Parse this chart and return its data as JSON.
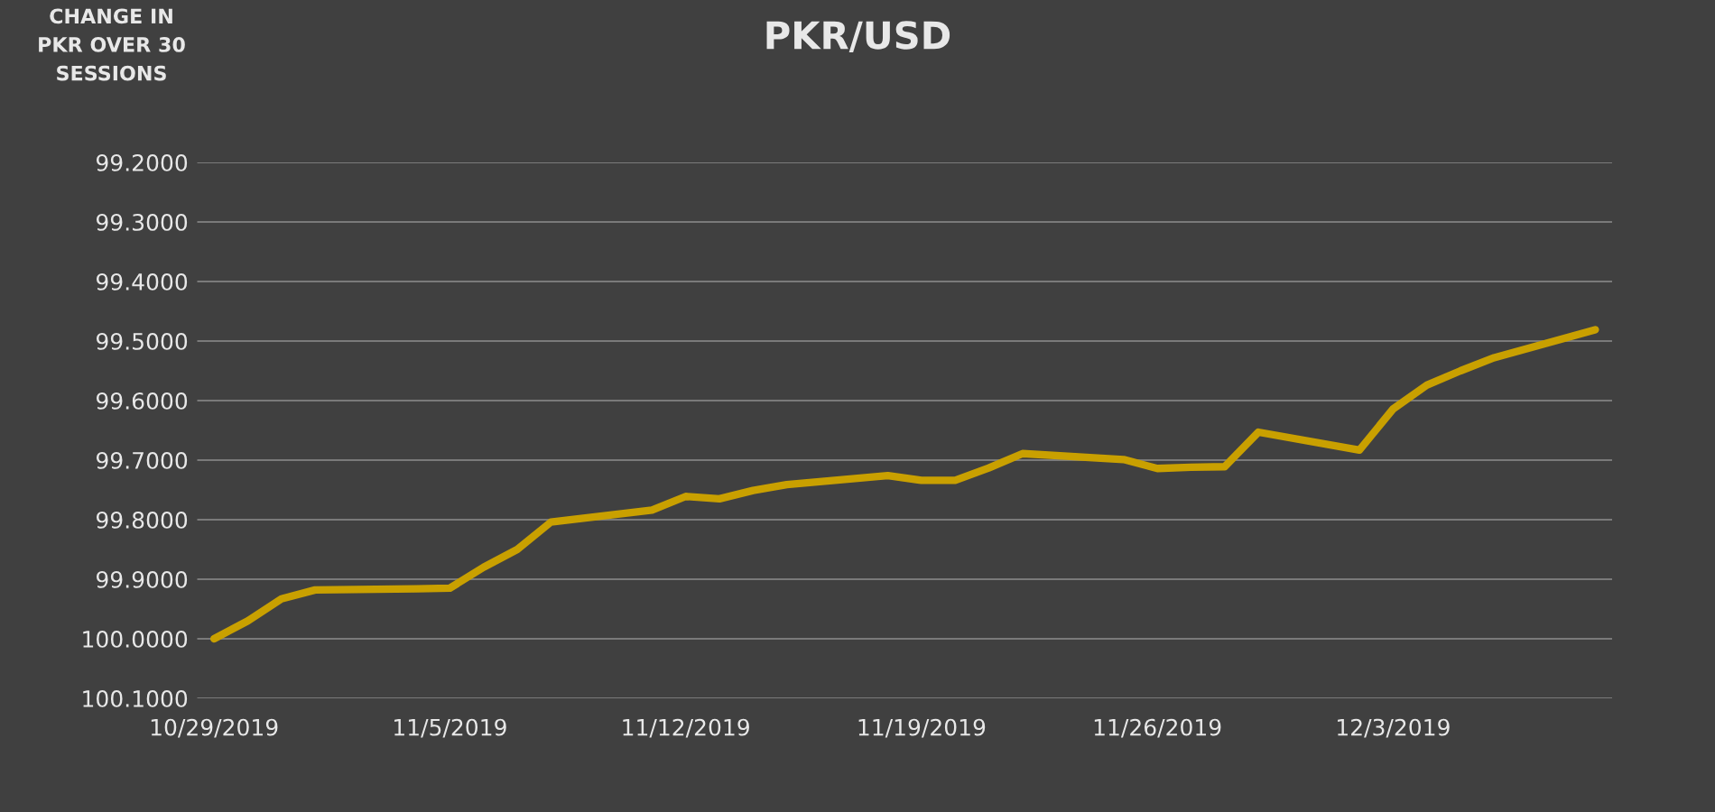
{
  "chart_data": {
    "type": "line",
    "title": "PKR/USD",
    "ylabel": "CHANGE IN\nPKR OVER 30\nSESSIONS",
    "x": [
      "2019-10-29",
      "2019-10-30",
      "2019-10-31",
      "2019-11-01",
      "2019-11-04",
      "2019-11-05",
      "2019-11-06",
      "2019-11-07",
      "2019-11-08",
      "2019-11-11",
      "2019-11-12",
      "2019-11-13",
      "2019-11-14",
      "2019-11-15",
      "2019-11-18",
      "2019-11-19",
      "2019-11-20",
      "2019-11-21",
      "2019-11-22",
      "2019-11-25",
      "2019-11-26",
      "2019-11-27",
      "2019-11-28",
      "2019-11-29",
      "2019-12-02",
      "2019-12-03",
      "2019-12-04",
      "2019-12-05",
      "2019-12-06",
      "2019-12-09"
    ],
    "series": [
      {
        "color": "#c9a000",
        "values": [
          100.0,
          99.97,
          99.933,
          99.918,
          99.916,
          99.915,
          99.88,
          99.85,
          99.804,
          99.784,
          99.761,
          99.765,
          99.751,
          99.741,
          99.726,
          99.734,
          99.734,
          99.713,
          99.689,
          99.699,
          99.714,
          99.712,
          99.711,
          99.653,
          99.683,
          99.614,
          99.574,
          99.55,
          99.528,
          99.481
        ]
      }
    ],
    "xlim": [
      "2019-10-28T12:00",
      "2019-12-09T12:00"
    ],
    "xticks": [
      {
        "value": "2019-10-29",
        "label": "10/29/2019"
      },
      {
        "value": "2019-11-05",
        "label": "11/5/2019"
      },
      {
        "value": "2019-11-12",
        "label": "11/12/2019"
      },
      {
        "value": "2019-11-19",
        "label": "11/19/2019"
      },
      {
        "value": "2019-11-26",
        "label": "11/26/2019"
      },
      {
        "value": "2019-12-03",
        "label": "12/3/2019"
      }
    ],
    "ylim": [
      100.1,
      99.2
    ],
    "yticks": [
      {
        "value": 99.2,
        "label": "99.2000"
      },
      {
        "value": 99.3,
        "label": "99.3000"
      },
      {
        "value": 99.4,
        "label": "99.4000"
      },
      {
        "value": 99.5,
        "label": "99.5000"
      },
      {
        "value": 99.6,
        "label": "99.6000"
      },
      {
        "value": 99.7,
        "label": "99.7000"
      },
      {
        "value": 99.8,
        "label": "99.8000"
      },
      {
        "value": 99.9,
        "label": "99.9000"
      },
      {
        "value": 100.0,
        "label": "100.0000"
      },
      {
        "value": 100.1,
        "label": "100.1000"
      }
    ],
    "grid": "y",
    "marker": "none",
    "line_style": "solid"
  }
}
